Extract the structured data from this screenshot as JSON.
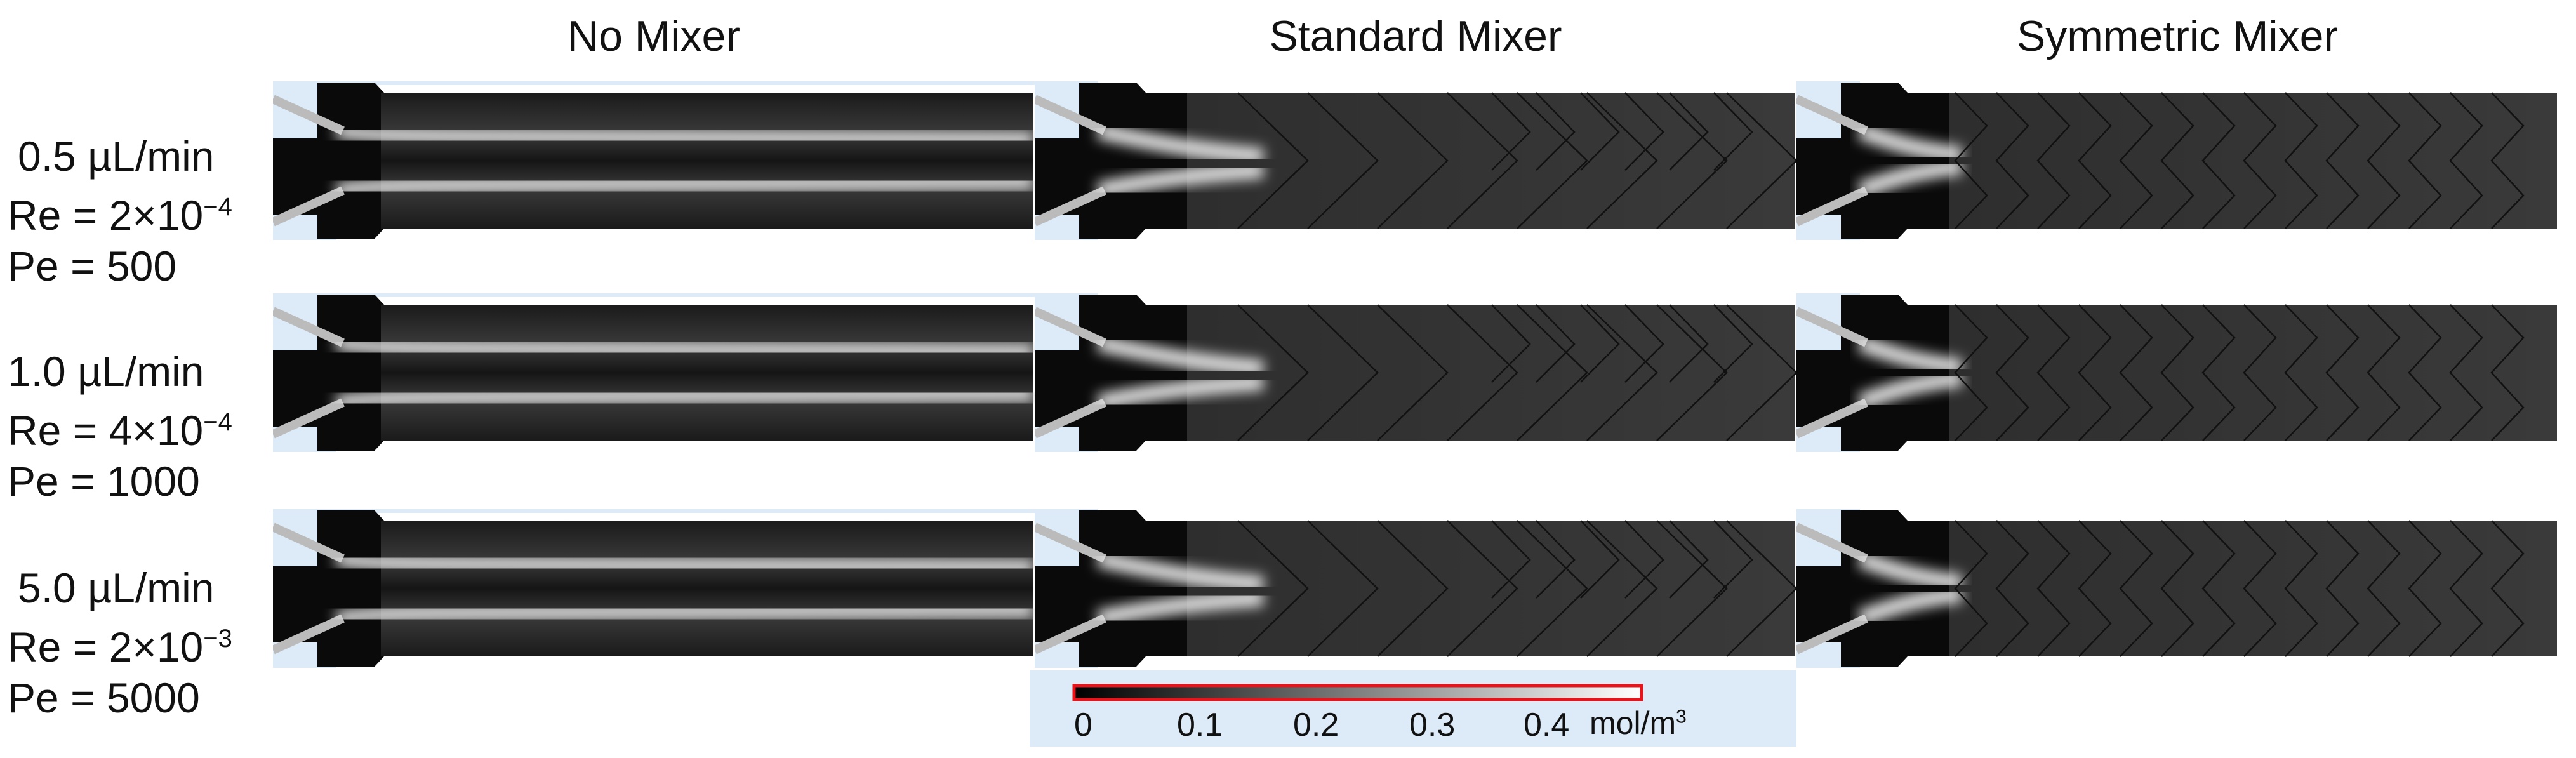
{
  "columns": [
    {
      "title": "No Mixer"
    },
    {
      "title": "Standard Mixer"
    },
    {
      "title": "Symmetric Mixer"
    }
  ],
  "rows": [
    {
      "flow": "0.5 µL/min",
      "re_base": "Re = 2×10",
      "re_exp": "−4",
      "pe": "Pe = 500"
    },
    {
      "flow": "1.0 µL/min",
      "re_base": "Re = 4×10",
      "re_exp": "−4",
      "pe": "Pe = 1000"
    },
    {
      "flow": "5.0 µL/min",
      "re_base": "Re = 2×10",
      "re_exp": "−3",
      "pe": "Pe = 5000"
    }
  ],
  "colorbar": {
    "ticks": [
      "0",
      "0.1",
      "0.2",
      "0.3",
      "0.4"
    ],
    "unit": "mol/m",
    "unit_exp": "3",
    "colors": {
      "low": "#000000",
      "high": "#ffffff",
      "frame": "#e8141c",
      "background": "#dcebf7"
    }
  }
}
